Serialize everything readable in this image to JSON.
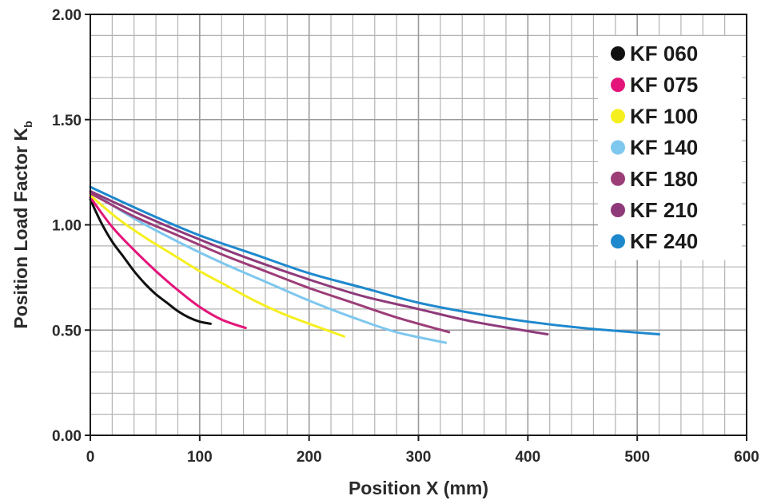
{
  "chart_data": {
    "type": "line",
    "xlabel": "Position X (mm)",
    "ylabel": "Position Load Factor K",
    "ylabel_subscript": "b",
    "xlim": [
      0,
      600
    ],
    "ylim": [
      0,
      2.0
    ],
    "x_ticks": [
      0,
      100,
      200,
      300,
      400,
      500,
      600
    ],
    "x_tick_labels": [
      "0",
      "100",
      "200",
      "300",
      "400",
      "500",
      "600"
    ],
    "y_ticks": [
      0,
      0.5,
      1.0,
      1.5,
      2.0
    ],
    "y_tick_labels": [
      "0.00",
      "0.50",
      "1.00",
      "1.50",
      "2.00"
    ],
    "grid": true,
    "legend_position": "top-right",
    "series": [
      {
        "name": "KF 060",
        "color": "#111111",
        "x": [
          0,
          10,
          20,
          30,
          40,
          50,
          60,
          70,
          80,
          90,
          100,
          110
        ],
        "y": [
          1.12,
          1.01,
          0.92,
          0.85,
          0.78,
          0.72,
          0.67,
          0.63,
          0.59,
          0.56,
          0.54,
          0.53
        ]
      },
      {
        "name": "KF 075",
        "color": "#e4147a",
        "x": [
          0,
          20,
          40,
          60,
          80,
          100,
          120,
          142
        ],
        "y": [
          1.13,
          0.99,
          0.88,
          0.78,
          0.69,
          0.61,
          0.55,
          0.51
        ]
      },
      {
        "name": "KF 100",
        "color": "#f6ef1e",
        "x": [
          0,
          25,
          50,
          75,
          100,
          125,
          150,
          175,
          200,
          232
        ],
        "y": [
          1.14,
          1.03,
          0.94,
          0.86,
          0.78,
          0.71,
          0.64,
          0.58,
          0.53,
          0.47
        ]
      },
      {
        "name": "KF 140",
        "color": "#7ec7ee",
        "x": [
          0,
          40,
          80,
          120,
          160,
          200,
          240,
          280,
          325
        ],
        "y": [
          1.16,
          1.03,
          0.92,
          0.82,
          0.73,
          0.64,
          0.56,
          0.49,
          0.44
        ]
      },
      {
        "name": "KF 180",
        "color": "#9c3d78",
        "x": [
          0,
          40,
          80,
          120,
          160,
          200,
          240,
          280,
          328
        ],
        "y": [
          1.15,
          1.04,
          0.95,
          0.86,
          0.78,
          0.7,
          0.63,
          0.56,
          0.49
        ]
      },
      {
        "name": "KF 210",
        "color": "#8e3a7a",
        "x": [
          0,
          50,
          100,
          150,
          200,
          250,
          300,
          350,
          418
        ],
        "y": [
          1.16,
          1.04,
          0.93,
          0.83,
          0.74,
          0.66,
          0.6,
          0.54,
          0.48
        ]
      },
      {
        "name": "KF 240",
        "color": "#1e88cd",
        "x": [
          0,
          50,
          100,
          150,
          200,
          250,
          300,
          350,
          400,
          450,
          520
        ],
        "y": [
          1.18,
          1.06,
          0.95,
          0.86,
          0.77,
          0.7,
          0.63,
          0.58,
          0.54,
          0.51,
          0.48
        ]
      }
    ]
  }
}
